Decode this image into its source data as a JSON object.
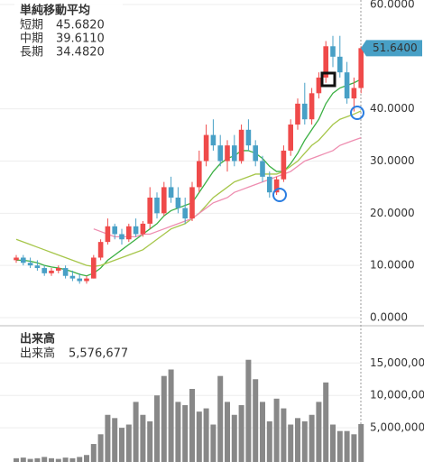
{
  "chart_data": {
    "type": "candlestick",
    "ma_title": "単純移動平均",
    "up_color": "#ef4a4a",
    "down_color": "#48a0c6",
    "ohlc": [
      [
        11,
        12,
        10.5,
        11.5
      ],
      [
        11.5,
        12,
        10,
        10.5
      ],
      [
        10.5,
        11.5,
        9.5,
        10
      ],
      [
        10,
        11,
        9,
        9.5
      ],
      [
        9.5,
        10,
        8,
        8.5
      ],
      [
        8.5,
        9.5,
        8,
        9
      ],
      [
        9,
        10,
        8.5,
        9.5
      ],
      [
        9.5,
        10,
        7.5,
        8
      ],
      [
        8,
        9,
        7,
        7.5
      ],
      [
        7.5,
        8.5,
        6.5,
        7
      ],
      [
        7,
        8,
        6.5,
        7.5
      ],
      [
        7.5,
        12,
        7.5,
        11.5
      ],
      [
        11.5,
        15,
        11,
        14.5
      ],
      [
        14.5,
        19,
        14,
        17.5
      ],
      [
        17.5,
        18,
        15,
        16
      ],
      [
        16,
        17,
        14,
        15
      ],
      [
        15,
        18,
        14.5,
        17.5
      ],
      [
        17.5,
        19,
        15.5,
        16
      ],
      [
        16,
        18.5,
        15.5,
        18
      ],
      [
        18,
        25,
        17,
        23
      ],
      [
        23,
        24,
        19,
        20
      ],
      [
        20,
        26,
        19.5,
        25
      ],
      [
        25,
        27,
        22,
        23
      ],
      [
        23,
        25,
        20,
        21
      ],
      [
        21,
        23,
        18,
        19
      ],
      [
        19,
        26,
        18.5,
        25
      ],
      [
        25,
        32,
        24,
        30
      ],
      [
        30,
        37,
        29,
        35
      ],
      [
        35,
        38,
        32,
        33
      ],
      [
        33,
        35,
        29,
        30
      ],
      [
        30,
        34,
        28,
        33
      ],
      [
        33,
        35,
        29,
        30
      ],
      [
        30,
        37,
        29.5,
        36
      ],
      [
        36,
        38,
        32,
        33
      ],
      [
        33,
        34,
        29,
        30
      ],
      [
        30,
        31,
        26,
        27
      ],
      [
        27,
        28,
        23,
        24
      ],
      [
        24,
        27,
        23.5,
        26.5
      ],
      [
        26.5,
        33,
        26,
        32
      ],
      [
        32,
        38,
        31,
        37
      ],
      [
        37,
        42,
        36,
        41
      ],
      [
        41,
        45,
        37,
        38
      ],
      [
        38,
        44,
        37,
        43
      ],
      [
        43,
        47,
        42,
        46
      ],
      [
        46,
        53,
        45,
        52
      ],
      [
        52,
        54,
        48,
        50
      ],
      [
        50,
        54,
        46,
        47
      ],
      [
        47,
        49,
        41,
        42
      ],
      [
        42,
        46,
        39.5,
        44
      ],
      [
        44,
        52,
        43,
        51.64
      ]
    ],
    "ma": [
      {
        "name": "短期",
        "color": "#3bb043",
        "legend_value": 45.682,
        "legend_label": "45.6820",
        "values": [
          11,
          11,
          10.8,
          10.5,
          10,
          9.7,
          9.5,
          9.2,
          8.8,
          8.3,
          8,
          8.5,
          9.5,
          11,
          12,
          13,
          14,
          15,
          16,
          17,
          18,
          19.5,
          20.5,
          21,
          21.5,
          22,
          24,
          26,
          28,
          29.5,
          30.5,
          31,
          32,
          32,
          31.5,
          30.5,
          29,
          28,
          28,
          29.5,
          31.5,
          34,
          36,
          38,
          41,
          43,
          44,
          44.5,
          45,
          45.682
        ]
      },
      {
        "name": "中期",
        "color": "#a6c64a",
        "legend_value": 39.611,
        "legend_label": "39.6110",
        "values": [
          15,
          14.5,
          14,
          13.5,
          13,
          12.5,
          12,
          11.5,
          11,
          10.5,
          10,
          9.8,
          10,
          10.5,
          11,
          11.5,
          12,
          12.5,
          13,
          14,
          15,
          16,
          17,
          17.5,
          18,
          19,
          20,
          21.5,
          23,
          24,
          25,
          26,
          26.5,
          27,
          27.5,
          27.5,
          27.5,
          27.5,
          28,
          29,
          30,
          31.5,
          33,
          34,
          35.5,
          37,
          38,
          38.5,
          39,
          39.611
        ]
      },
      {
        "name": "長期",
        "color": "#ee8db0",
        "legend_value": 34.482,
        "legend_label": "34.4820",
        "values": [
          null,
          null,
          null,
          null,
          null,
          null,
          null,
          null,
          null,
          null,
          null,
          17,
          16.5,
          16,
          15.5,
          15.5,
          15.5,
          15.5,
          16,
          16,
          16.5,
          17,
          17.5,
          18,
          18.5,
          19,
          20,
          21,
          22,
          22.5,
          23,
          24,
          24.5,
          25,
          25.5,
          26,
          26.5,
          27,
          27.5,
          28,
          29,
          30,
          30.5,
          31,
          31.5,
          32,
          33,
          33.5,
          34,
          34.482
        ]
      }
    ],
    "ylim": [
      0,
      60
    ],
    "yticks": [
      {
        "value": 0,
        "label": "0.0000"
      },
      {
        "value": 10,
        "label": "10.0000"
      },
      {
        "value": 20,
        "label": "20.0000"
      },
      {
        "value": 30,
        "label": "30.0000"
      },
      {
        "value": 40,
        "label": "40.0000"
      },
      {
        "value": 60,
        "label": "60.0000"
      }
    ],
    "last_price": {
      "value": 51.64,
      "label": "51.6400",
      "color": "#48a0c6"
    },
    "volume": {
      "title": "出来高",
      "name": "出来高",
      "color": "#888888",
      "values": [
        300000,
        400000,
        200000,
        300000,
        500000,
        300000,
        200000,
        400000,
        300000,
        500000,
        800000,
        2500000,
        4000000,
        7000000,
        6500000,
        5000000,
        5500000,
        9000000,
        7000000,
        6000000,
        10000000,
        13000000,
        14000000,
        9000000,
        8500000,
        11000000,
        7500000,
        8000000,
        5500000,
        13000000,
        9000000,
        7000000,
        8500000,
        15500000,
        12500000,
        9000000,
        6000000,
        9500000,
        8000000,
        5500000,
        6500000,
        6000000,
        7000000,
        9000000,
        12000000,
        5500000,
        4500000,
        4500000,
        4000000,
        5576677
      ],
      "value_label": "5,576,677",
      "ylim": [
        0,
        19500000
      ],
      "yticks": [
        {
          "value": 5000000,
          "label": "5,000,000"
        },
        {
          "value": 10000000,
          "label": "10,000,000"
        },
        {
          "value": 15000000,
          "label": "15,000,000"
        }
      ]
    }
  }
}
